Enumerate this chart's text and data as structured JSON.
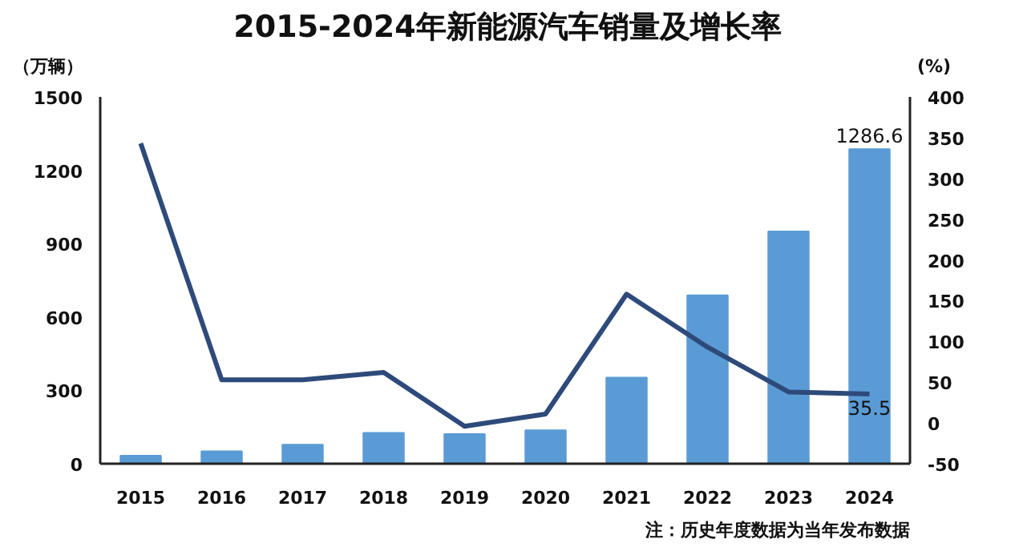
{
  "chart_data": {
    "type": "bar",
    "title": "2015-2024年新能源汽车销量及增长率",
    "ylabel": "（万辆）",
    "y2label": "(%)",
    "annotations": [
      "注：历史年度数据为当年发布数据"
    ],
    "categories": [
      "2015",
      "2016",
      "2017",
      "2018",
      "2019",
      "2020",
      "2021",
      "2022",
      "2023",
      "2024"
    ],
    "series": [
      {
        "type": "bar",
        "color": "#5b9bd5",
        "values": [
          33,
          51,
          78,
          126,
          121,
          137,
          352,
          689,
          950,
          1286.6
        ],
        "value_labels": [
          null,
          null,
          null,
          null,
          null,
          null,
          null,
          null,
          null,
          "1286.6"
        ]
      },
      {
        "type": "line",
        "axis": "y2",
        "color": "#2e4a7a",
        "values": [
          343,
          53,
          53,
          62,
          -4,
          11,
          158,
          93,
          38,
          35.5
        ],
        "value_labels": [
          null,
          null,
          null,
          null,
          null,
          null,
          null,
          null,
          null,
          "35.5"
        ]
      }
    ],
    "ylim": [
      0,
      1500
    ],
    "yticks": [
      0,
      300,
      600,
      900,
      1200,
      1500
    ],
    "y2lim": [
      -50,
      400
    ],
    "y2ticks": [
      -50,
      0,
      50,
      100,
      150,
      200,
      250,
      300,
      350,
      400
    ],
    "grid": false,
    "marker": "none",
    "line_style": "solid"
  }
}
